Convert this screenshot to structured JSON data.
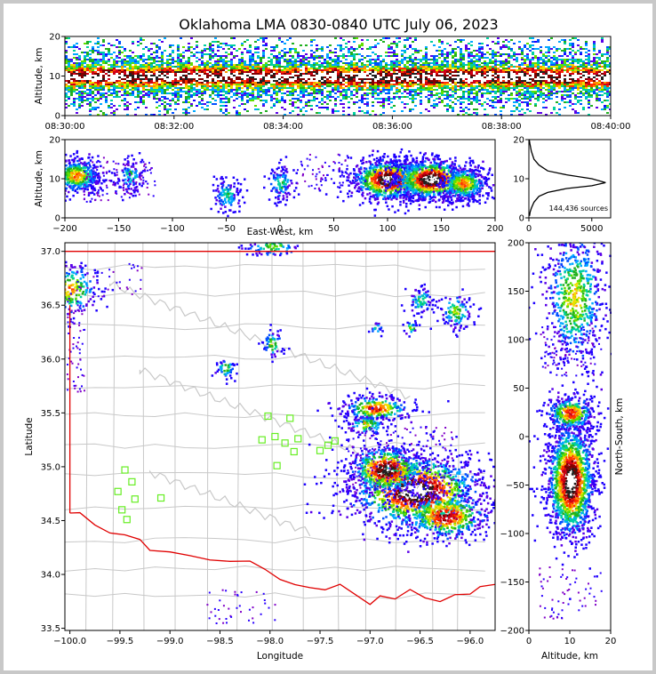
{
  "chart_data": [
    {
      "type": "heatmap",
      "panel": "time-height",
      "title": "Oklahoma LMA 0830-0840 UTC July 06, 2023",
      "ylabel": "Altitude, km",
      "xlabel": "",
      "xlim": [
        "08:30:00",
        "08:40:00"
      ],
      "ylim": [
        0,
        20
      ],
      "xticks": [
        "08:30:00",
        "08:32:00",
        "08:34:00",
        "08:36:00",
        "08:38:00",
        "08:40:00"
      ],
      "yticks": [
        "0",
        "10",
        "20"
      ],
      "description_values": {
        "peak_density_altitude_km": [
          8,
          12
        ]
      }
    },
    {
      "type": "heatmap",
      "panel": "east-west-height",
      "xlabel": "East-West, km",
      "ylabel": "Altitude, km",
      "xlim": [
        -200,
        200
      ],
      "ylim": [
        0,
        20
      ],
      "xticks": [
        "−200",
        "−150",
        "−100",
        "−50",
        "0",
        "50",
        "100",
        "150",
        "200"
      ],
      "yticks": [
        "0",
        "10",
        "20"
      ],
      "clusters": [
        {
          "x": -190,
          "y": 11,
          "density": "medium"
        },
        {
          "x": -140,
          "y": 11,
          "density": "low"
        },
        {
          "x": -50,
          "y": 6,
          "density": "low"
        },
        {
          "x": 0,
          "y": 9,
          "density": "low"
        },
        {
          "x": 100,
          "y": 10,
          "density": "high"
        },
        {
          "x": 140,
          "y": 10,
          "density": "high"
        },
        {
          "x": 170,
          "y": 9,
          "density": "medium"
        }
      ]
    },
    {
      "type": "line",
      "panel": "altitude-histogram",
      "xlim": [
        0,
        6500
      ],
      "ylim": [
        0,
        20
      ],
      "xticks": [
        "0",
        "5000"
      ],
      "yticks": [
        "0",
        "10",
        "20"
      ],
      "annotation": "144,436 sources",
      "x": [
        50,
        100,
        200,
        400,
        800,
        1500,
        3000,
        5000,
        6100,
        5000,
        3000,
        1500,
        800,
        400,
        200,
        80,
        30
      ],
      "y": [
        0.5,
        1.5,
        2.5,
        4,
        5.5,
        6.5,
        7.5,
        8.2,
        9.0,
        10.0,
        11,
        12,
        13.5,
        15,
        17,
        19,
        20
      ]
    },
    {
      "type": "heatmap",
      "panel": "plan-view",
      "xlabel": "Longitude",
      "ylabel": "Latitude",
      "xlim": [
        -100.05,
        -95.75
      ],
      "ylim": [
        33.48,
        37.08
      ],
      "xticks": [
        "−100.0",
        "−99.5",
        "−99.0",
        "−98.5",
        "−98.0",
        "−97.5",
        "−97.0",
        "−96.5",
        "−96.0"
      ],
      "yticks": [
        "33.5",
        "34.0",
        "34.5",
        "35.0",
        "35.5",
        "36.0",
        "36.5",
        "37.0"
      ],
      "stations": [
        [
          -99.45,
          34.97
        ],
        [
          -99.38,
          34.86
        ],
        [
          -99.52,
          34.77
        ],
        [
          -99.35,
          34.7
        ],
        [
          -99.48,
          34.6
        ],
        [
          -99.43,
          34.51
        ],
        [
          -99.09,
          34.71
        ],
        [
          -98.02,
          35.47
        ],
        [
          -97.8,
          35.45
        ],
        [
          -98.08,
          35.25
        ],
        [
          -97.95,
          35.28
        ],
        [
          -97.72,
          35.26
        ],
        [
          -97.85,
          35.22
        ],
        [
          -97.93,
          35.01
        ],
        [
          -97.76,
          35.14
        ],
        [
          -97.5,
          35.15
        ],
        [
          -97.42,
          35.2
        ],
        [
          -97.35,
          35.24
        ]
      ]
    },
    {
      "type": "heatmap",
      "panel": "north-south-height",
      "xlabel": "Altitude, km",
      "ylabel": "North-South, km",
      "xlim": [
        0,
        20
      ],
      "ylim": [
        -200,
        200
      ],
      "xticks": [
        "0",
        "10",
        "20"
      ],
      "yticks": [
        "−200",
        "−150",
        "−100",
        "−50",
        "0",
        "50",
        "100",
        "150",
        "200"
      ]
    }
  ]
}
